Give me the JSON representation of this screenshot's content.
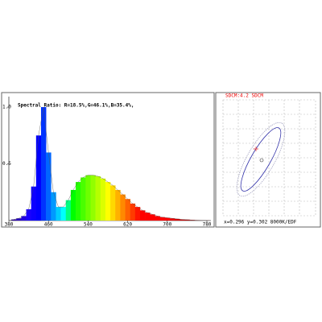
{
  "chart_data": {
    "type": "spectrum",
    "annotation": "Spectral Ratio:  R=18.5%,G=46.1%,B=35.4%,",
    "x": [
      380,
      390,
      400,
      410,
      420,
      430,
      440,
      450,
      460,
      470,
      480,
      490,
      500,
      510,
      520,
      530,
      540,
      550,
      560,
      570,
      580,
      590,
      600,
      610,
      620,
      630,
      640,
      650,
      660,
      670,
      680,
      690,
      700,
      710,
      720,
      730,
      740,
      750,
      760,
      770,
      780
    ],
    "values": [
      0.0,
      0.01,
      0.02,
      0.04,
      0.1,
      0.3,
      0.75,
      1.0,
      0.6,
      0.25,
      0.12,
      0.12,
      0.18,
      0.27,
      0.34,
      0.38,
      0.4,
      0.4,
      0.39,
      0.37,
      0.34,
      0.31,
      0.27,
      0.23,
      0.19,
      0.15,
      0.12,
      0.09,
      0.07,
      0.055,
      0.04,
      0.03,
      0.025,
      0.02,
      0.015,
      0.01,
      0.008,
      0.005,
      0.003,
      0.002,
      0.001
    ],
    "xlim": [
      380,
      780
    ],
    "ylim": [
      0,
      1.05
    ],
    "xticks": [
      380,
      460,
      540,
      620,
      700,
      780
    ],
    "yticks": [
      {
        "value": 1,
        "label": "1.0"
      },
      0.5
    ]
  },
  "sdcm_panel": {
    "title": "SDCM:4.2 SDCM",
    "footer": "x=0.296 y=0.302 8000K/EDF"
  }
}
